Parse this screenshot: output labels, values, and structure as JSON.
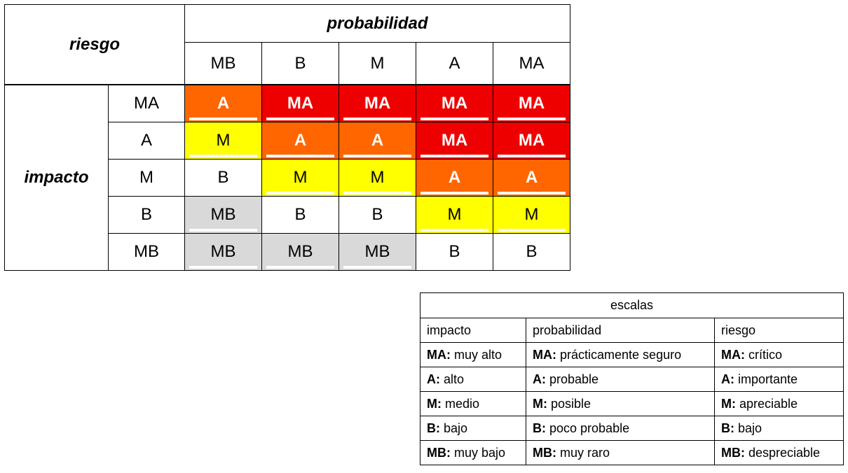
{
  "matrix": {
    "corner_label": "riesgo",
    "column_group_label": "probabilidad",
    "row_group_label": "impacto",
    "columns": [
      "MB",
      "B",
      "M",
      "A",
      "MA"
    ],
    "rows": [
      {
        "label": "MA",
        "cells": [
          "A",
          "MA",
          "MA",
          "MA",
          "MA"
        ]
      },
      {
        "label": "A",
        "cells": [
          "M",
          "A",
          "A",
          "MA",
          "MA"
        ]
      },
      {
        "label": "M",
        "cells": [
          "B",
          "M",
          "M",
          "A",
          "A"
        ]
      },
      {
        "label": "B",
        "cells": [
          "MB",
          "B",
          "B",
          "M",
          "M"
        ]
      },
      {
        "label": "MB",
        "cells": [
          "MB",
          "MB",
          "MB",
          "B",
          "B"
        ]
      }
    ],
    "level_colors": {
      "MA": "#ee0000",
      "A": "#ff6600",
      "M": "#ffff00",
      "B": "#ffffff",
      "MB": "#d9d9d9"
    }
  },
  "legend": {
    "title": "escalas",
    "headers": [
      "impacto",
      "probabilidad",
      "riesgo"
    ],
    "rows": [
      [
        {
          "code": "MA:",
          "text": " muy alto"
        },
        {
          "code": "MA:",
          "text": " prácticamente seguro"
        },
        {
          "code": "MA:",
          "text": " crítico"
        }
      ],
      [
        {
          "code": "A:",
          "text": " alto"
        },
        {
          "code": "A:",
          "text": " probable"
        },
        {
          "code": "A:",
          "text": " importante"
        }
      ],
      [
        {
          "code": "M:",
          "text": " medio"
        },
        {
          "code": "M:",
          "text": " posible"
        },
        {
          "code": "M:",
          "text": " apreciable"
        }
      ],
      [
        {
          "code": "B:",
          "text": " bajo"
        },
        {
          "code": "B:",
          "text": " poco probable"
        },
        {
          "code": "B:",
          "text": " bajo"
        }
      ],
      [
        {
          "code": "MB:",
          "text": " muy bajo"
        },
        {
          "code": "MB:",
          "text": " muy raro"
        },
        {
          "code": "MB:",
          "text": " despreciable"
        }
      ]
    ]
  }
}
